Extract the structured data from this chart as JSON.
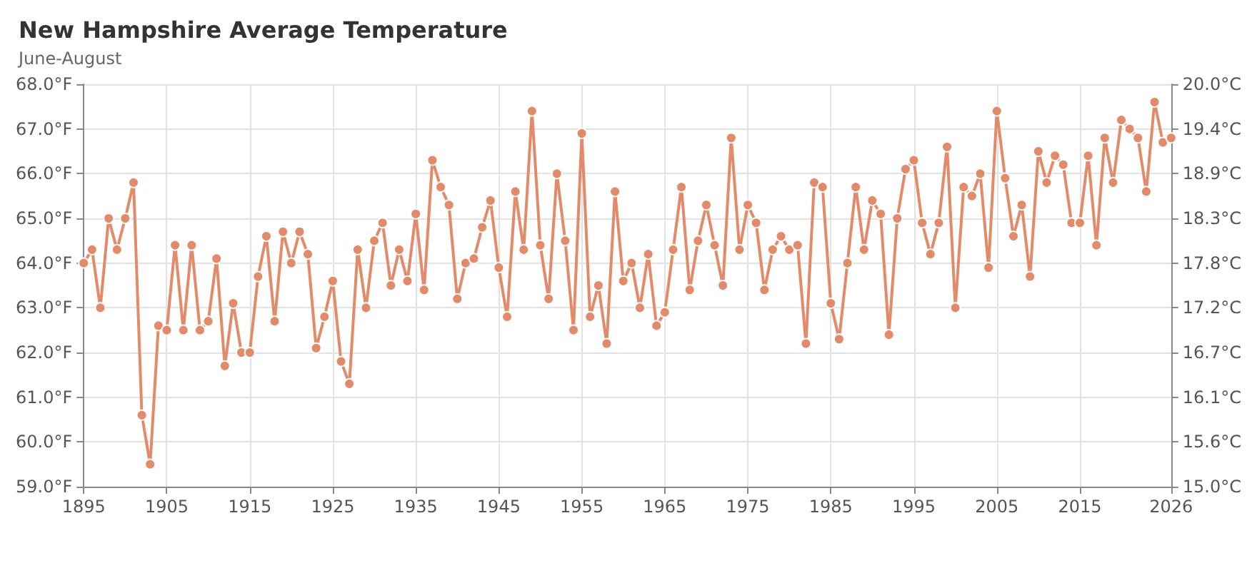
{
  "chart_data": {
    "type": "line",
    "title": "New Hampshire Average Temperature",
    "subtitle": "June-August",
    "x": [
      1895,
      1896,
      1897,
      1898,
      1899,
      1900,
      1901,
      1902,
      1903,
      1904,
      1905,
      1906,
      1907,
      1908,
      1909,
      1910,
      1911,
      1912,
      1913,
      1914,
      1915,
      1916,
      1917,
      1918,
      1919,
      1920,
      1921,
      1922,
      1923,
      1924,
      1925,
      1926,
      1927,
      1928,
      1929,
      1930,
      1931,
      1932,
      1933,
      1934,
      1935,
      1936,
      1937,
      1938,
      1939,
      1940,
      1941,
      1942,
      1943,
      1944,
      1945,
      1946,
      1947,
      1948,
      1949,
      1950,
      1951,
      1952,
      1953,
      1954,
      1955,
      1956,
      1957,
      1958,
      1959,
      1960,
      1961,
      1962,
      1963,
      1964,
      1965,
      1966,
      1967,
      1968,
      1969,
      1970,
      1971,
      1972,
      1973,
      1974,
      1975,
      1976,
      1977,
      1978,
      1979,
      1980,
      1981,
      1982,
      1983,
      1984,
      1985,
      1986,
      1987,
      1988,
      1989,
      1990,
      1991,
      1992,
      1993,
      1994,
      1995,
      1996,
      1997,
      1998,
      1999,
      2000,
      2001,
      2002,
      2003,
      2004,
      2005,
      2006,
      2007,
      2008,
      2009,
      2010,
      2011,
      2012,
      2013,
      2014,
      2015,
      2016,
      2017,
      2018,
      2019,
      2020,
      2021,
      2022,
      2023,
      2024,
      2025,
      2026
    ],
    "series": [
      {
        "color": "#e38b69",
        "values": [
          64.0,
          64.3,
          63.0,
          65.0,
          64.3,
          65.0,
          65.8,
          60.6,
          59.5,
          62.6,
          62.5,
          64.4,
          62.5,
          64.4,
          62.5,
          62.7,
          64.1,
          61.7,
          63.1,
          62.0,
          62.0,
          63.7,
          64.6,
          62.7,
          64.7,
          64.0,
          64.7,
          64.2,
          62.1,
          62.8,
          63.6,
          61.8,
          61.3,
          64.3,
          63.0,
          64.5,
          64.9,
          63.5,
          64.3,
          63.6,
          65.1,
          63.4,
          66.3,
          65.7,
          65.3,
          63.2,
          64.0,
          64.1,
          64.8,
          65.4,
          63.9,
          62.8,
          65.6,
          64.3,
          67.4,
          64.4,
          63.2,
          66.0,
          64.5,
          62.5,
          66.9,
          62.8,
          63.5,
          62.2,
          65.6,
          63.6,
          64.0,
          63.0,
          64.2,
          62.6,
          62.9,
          64.3,
          65.7,
          63.4,
          64.5,
          65.3,
          64.4,
          63.5,
          66.8,
          64.3,
          65.3,
          64.9,
          63.4,
          64.3,
          64.6,
          64.3,
          64.4,
          62.2,
          65.8,
          65.7,
          63.1,
          62.3,
          64.0,
          65.7,
          64.3,
          65.4,
          65.1,
          62.4,
          65.0,
          66.1,
          66.3,
          64.9,
          64.2,
          64.9,
          66.6,
          63.0,
          65.7,
          65.5,
          66.0,
          63.9,
          67.4,
          65.9,
          64.6,
          65.3,
          63.7,
          66.5,
          65.8,
          66.4,
          66.2,
          64.9,
          64.9,
          66.4,
          64.4,
          66.8,
          65.8,
          67.2,
          67.0,
          66.8,
          65.6,
          67.6,
          66.7,
          66.8
        ]
      }
    ],
    "xlim": [
      1895,
      2026
    ],
    "xticks": [
      1895,
      1905,
      1915,
      1925,
      1935,
      1945,
      1955,
      1965,
      1975,
      1985,
      1995,
      2005,
      2015,
      2026
    ],
    "ylim": [
      59,
      68
    ],
    "yticks": [
      {
        "value": 59,
        "label": "59.0°F"
      },
      {
        "value": 60,
        "label": "60.0°F"
      },
      {
        "value": 61,
        "label": "61.0°F"
      },
      {
        "value": 62,
        "label": "62.0°F"
      },
      {
        "value": 63,
        "label": "63.0°F"
      },
      {
        "value": 64,
        "label": "64.0°F"
      },
      {
        "value": 65,
        "label": "65.0°F"
      },
      {
        "value": 66,
        "label": "66.0°F"
      },
      {
        "value": 67,
        "label": "67.0°F"
      },
      {
        "value": 68,
        "label": "68.0°F"
      }
    ],
    "y2lim": [
      15,
      20
    ],
    "y2ticks": [
      {
        "value": 15,
        "label": "15.0°C"
      },
      {
        "value": 15.556,
        "label": "15.6°C"
      },
      {
        "value": 16.111,
        "label": "16.1°C"
      },
      {
        "value": 16.667,
        "label": "16.7°C"
      },
      {
        "value": 17.222,
        "label": "17.2°C"
      },
      {
        "value": 17.778,
        "label": "17.8°C"
      },
      {
        "value": 18.333,
        "label": "18.3°C"
      },
      {
        "value": 18.889,
        "label": "18.9°C"
      },
      {
        "value": 19.444,
        "label": "19.4°C"
      },
      {
        "value": 20,
        "label": "20.0°C"
      }
    ],
    "grid": true,
    "marker": "circle",
    "line_style": "solid"
  }
}
